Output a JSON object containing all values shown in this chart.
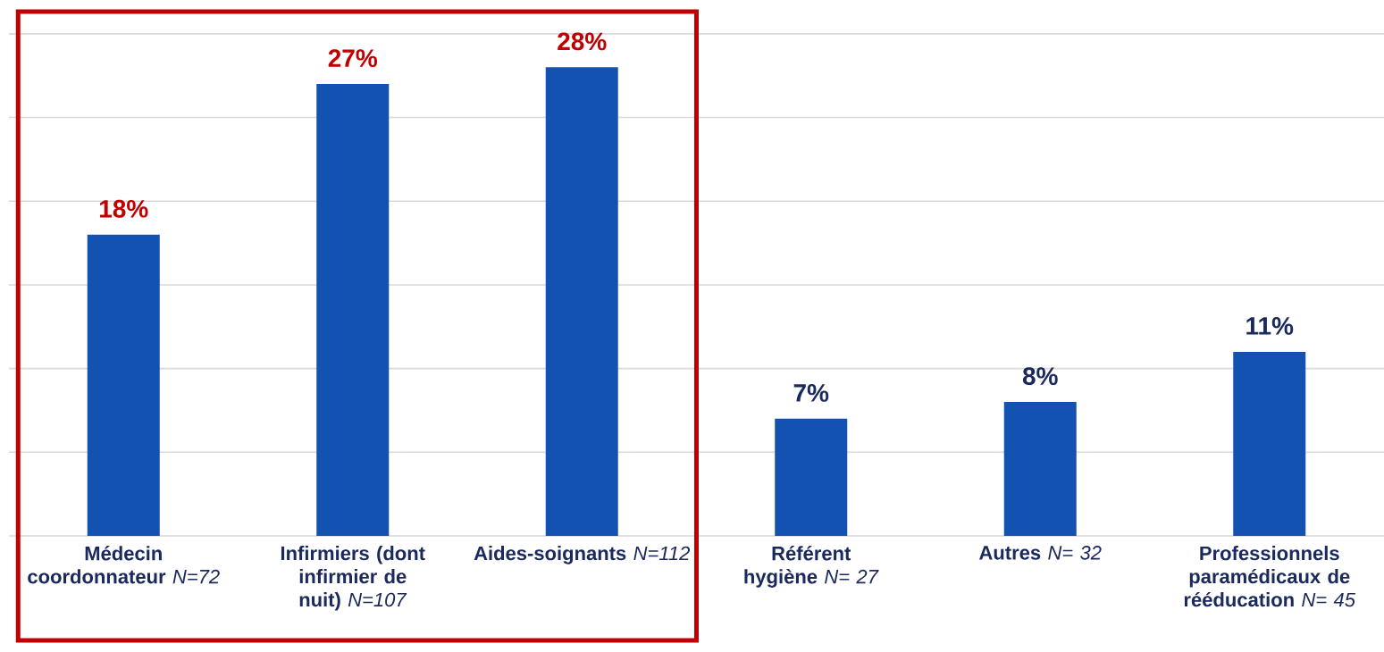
{
  "chart_data": {
    "type": "bar",
    "categories": [
      "**Médecin coordonnateur** *N=72*",
      "**Infirmiers (dont infirmier de nuit)** *N=107*",
      "**Aides-soignants** *N=112*",
      "**Référent hygiène** *N= 27*",
      "**Autres** *N= 32*",
      "**Professionnels paramédicaux de rééducation** *N= 45*"
    ],
    "values": [
      18,
      27,
      28,
      7,
      8,
      11
    ],
    "value_labels": [
      "18%",
      "27%",
      "28%",
      "7%",
      "8%",
      "11%"
    ],
    "color": "#1352b0",
    "grid": "y",
    "tick_labels": "x"
  }
}
